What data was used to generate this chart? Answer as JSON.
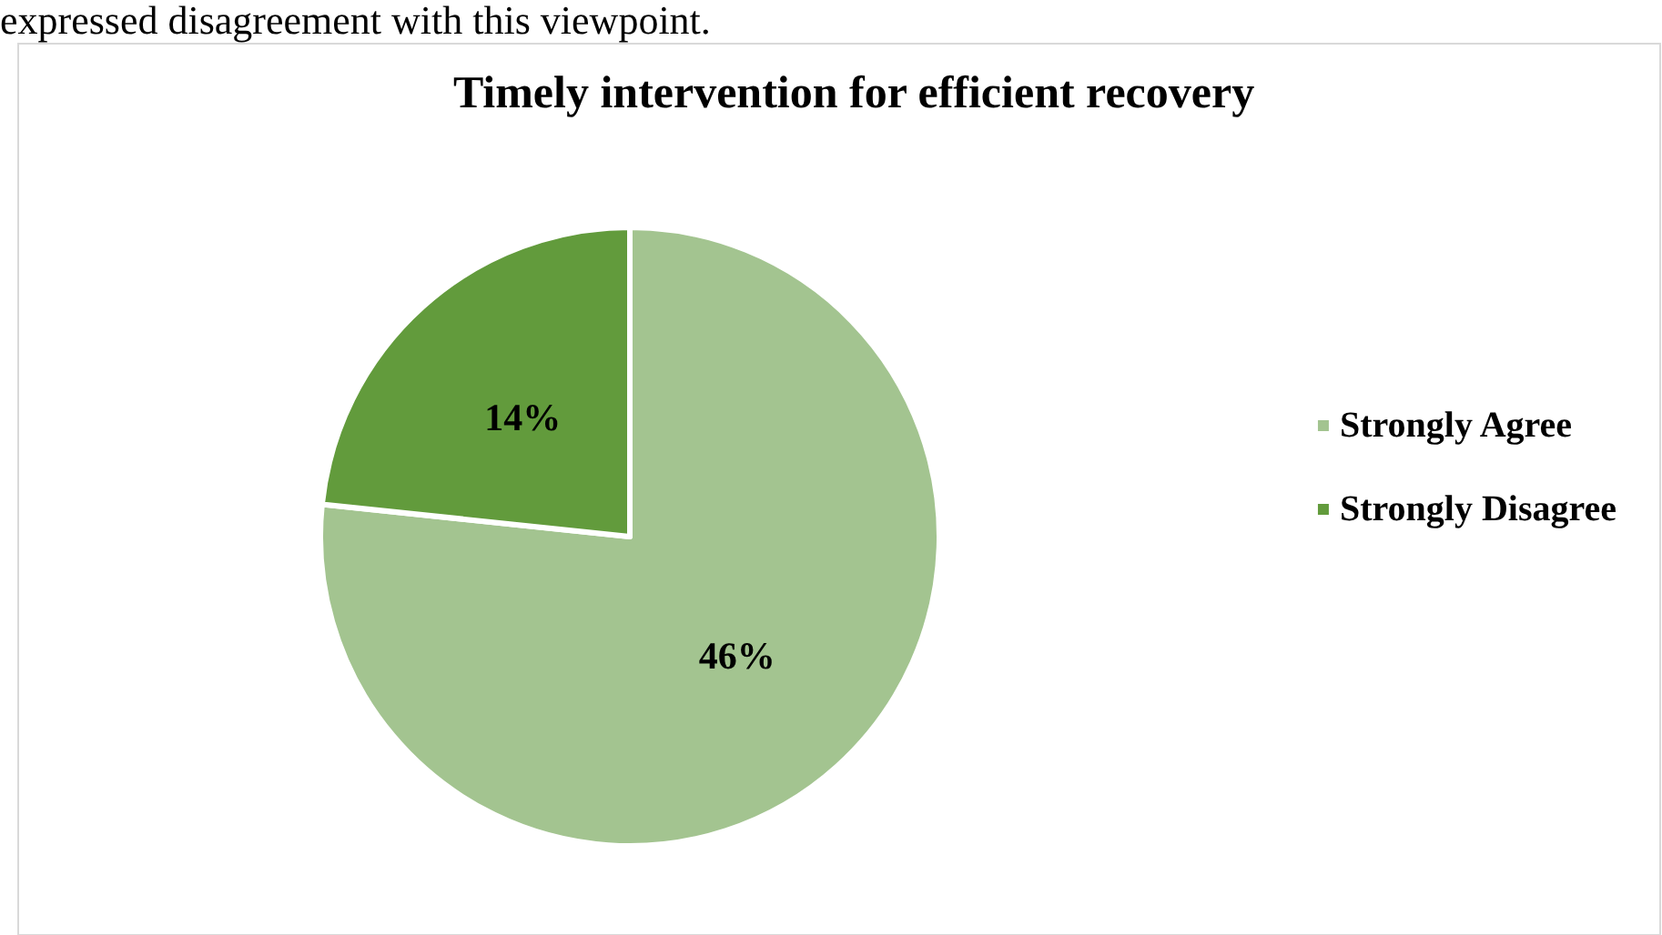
{
  "chart_data": {
    "type": "pie",
    "title": "Timely intervention for efficient recovery",
    "annotations": [
      "expressed disagreement with this viewpoint."
    ],
    "categories": [
      "Strongly Agree",
      "Strongly Disagree"
    ],
    "values": [
      46,
      14
    ],
    "colors": [
      "#a3c490",
      "#629b3c"
    ],
    "value_labels": [
      "46%",
      "14%"
    ],
    "legend": "right"
  }
}
